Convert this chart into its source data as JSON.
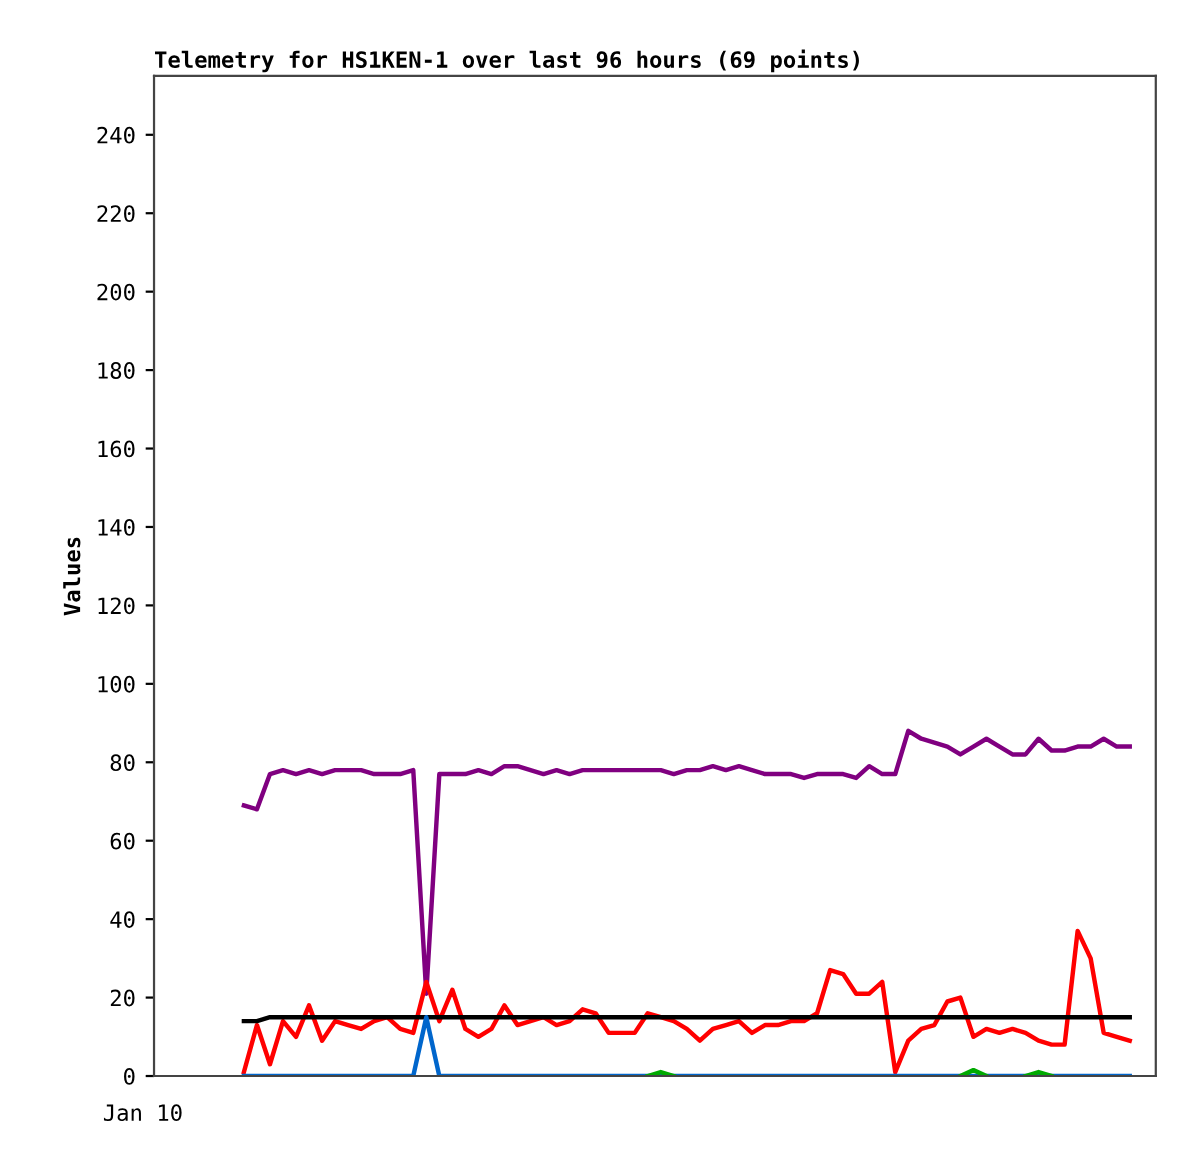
{
  "chart_data": {
    "type": "line",
    "title": "Telemetry for HS1KEN-1 over last 96 hours (69 points)",
    "ylabel": "Values",
    "annotations": [
      "Jan 10"
    ],
    "categories": [
      null,
      null,
      null,
      null,
      null,
      null,
      null,
      null,
      null,
      null,
      null,
      null,
      null,
      null,
      null,
      null,
      null,
      null,
      null,
      null,
      null,
      null,
      null,
      null,
      null,
      null,
      null,
      null,
      null,
      null,
      null,
      null,
      null,
      null,
      null,
      null,
      null,
      null,
      null,
      null,
      null,
      null,
      null,
      null,
      null,
      null,
      null,
      null,
      null,
      null,
      null,
      null,
      null,
      null,
      null,
      null,
      null,
      null,
      null,
      null,
      null,
      null,
      null,
      null,
      null,
      null,
      null,
      null,
      null
    ],
    "ylim": [
      0,
      255
    ],
    "yticks": [
      0,
      20,
      40,
      60,
      80,
      100,
      120,
      140,
      160,
      180,
      200,
      220,
      240
    ],
    "grid": false,
    "legend": false,
    "marker": "none",
    "line_style": "solid",
    "series": [
      {
        "color": "#800080",
        "values": [
          69,
          68,
          77,
          78,
          77,
          78,
          77,
          78,
          78,
          78,
          77,
          77,
          77,
          78,
          21,
          77,
          77,
          77,
          78,
          77,
          79,
          79,
          78,
          77,
          78,
          77,
          78,
          78,
          78,
          78,
          78,
          78,
          78,
          77,
          78,
          78,
          79,
          78,
          79,
          78,
          77,
          77,
          77,
          76,
          77,
          77,
          77,
          76,
          79,
          77,
          77,
          88,
          86,
          85,
          84,
          82,
          84,
          86,
          84,
          82,
          82,
          86,
          83,
          83,
          84,
          84,
          86,
          84,
          84
        ]
      },
      {
        "color": "#ff0000",
        "values": [
          1,
          13,
          3,
          14,
          10,
          18,
          9,
          14,
          13,
          12,
          14,
          15,
          12,
          11,
          24,
          14,
          22,
          12,
          10,
          12,
          18,
          13,
          14,
          15,
          13,
          14,
          17,
          16,
          11,
          11,
          11,
          16,
          15,
          14,
          12,
          9,
          12,
          13,
          14,
          11,
          13,
          13,
          14,
          14,
          16,
          27,
          26,
          21,
          21,
          24,
          1,
          9,
          12,
          13,
          19,
          20,
          10,
          12,
          11,
          12,
          11,
          9,
          8,
          8,
          37,
          30,
          11,
          10,
          9
        ]
      },
      {
        "color": "#000000",
        "values": [
          14,
          14,
          15,
          15,
          15,
          15,
          15,
          15,
          15,
          15,
          15,
          15,
          15,
          15,
          15,
          15,
          15,
          15,
          15,
          15,
          15,
          15,
          15,
          15,
          15,
          15,
          15,
          15,
          15,
          15,
          15,
          15,
          15,
          15,
          15,
          15,
          15,
          15,
          15,
          15,
          15,
          15,
          15,
          15,
          15,
          15,
          15,
          15,
          15,
          15,
          15,
          15,
          15,
          15,
          15,
          15,
          15,
          15,
          15,
          15,
          15,
          15,
          15,
          15,
          15,
          15,
          15,
          15,
          15
        ]
      },
      {
        "color": "#0066cc",
        "values": [
          0,
          0,
          0,
          0,
          0,
          0,
          0,
          0,
          0,
          0,
          0,
          0,
          0,
          0,
          15,
          0,
          0,
          0,
          0,
          0,
          0,
          0,
          0,
          0,
          0,
          0,
          0,
          0,
          0,
          0,
          0,
          0,
          0,
          0,
          0,
          0,
          0,
          0,
          0,
          0,
          0,
          0,
          0,
          0,
          0,
          0,
          0,
          0,
          0,
          0,
          0,
          0,
          0,
          0,
          0,
          0,
          0,
          0,
          0,
          0,
          0,
          0,
          0,
          0,
          0,
          0,
          0,
          0,
          0
        ]
      },
      {
        "color": "#00aa00",
        "values": [
          null,
          null,
          null,
          null,
          null,
          null,
          null,
          null,
          null,
          null,
          null,
          null,
          null,
          null,
          null,
          null,
          null,
          null,
          null,
          null,
          null,
          null,
          null,
          null,
          null,
          null,
          null,
          null,
          null,
          null,
          null,
          0,
          1,
          0,
          null,
          null,
          null,
          null,
          null,
          null,
          null,
          null,
          null,
          null,
          null,
          null,
          null,
          null,
          null,
          null,
          null,
          null,
          null,
          null,
          null,
          0,
          1.5,
          0,
          null,
          null,
          0,
          1,
          0,
          null,
          null,
          null,
          null,
          null,
          null
        ]
      }
    ]
  }
}
